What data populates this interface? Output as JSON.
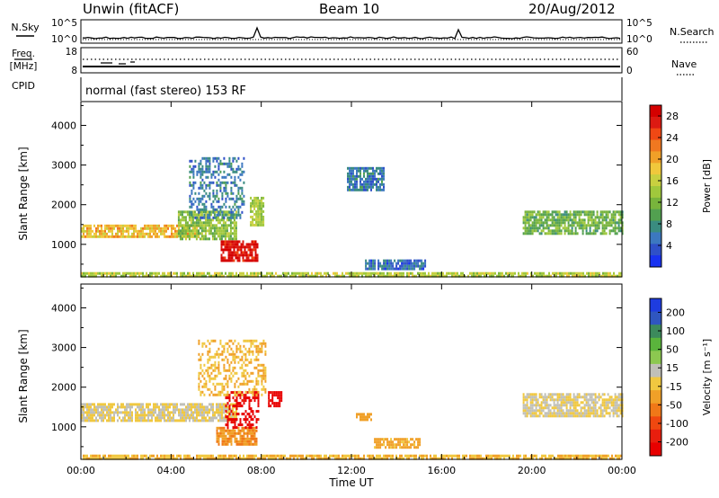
{
  "header": {
    "station": "Unwin (fitACF)",
    "beam": "Beam 10",
    "date": "20/Aug/2012"
  },
  "top_panels": {
    "nsky_label": "N.Sky",
    "nsearch_label": "N.Search",
    "noise_ticks": [
      "10^5",
      "10^0"
    ],
    "freq_label_1": "Freq.",
    "freq_label_2": "[MHz]",
    "freq_ticks": [
      "18",
      "8"
    ],
    "nave_ticks": [
      "60",
      "0"
    ],
    "nave_label": "Nave",
    "cpid_label": "CPID",
    "program": "normal (fast stereo) 153 RF"
  },
  "chart_data": [
    {
      "type": "heatmap",
      "name": "power-panel",
      "ylabel": "Slant Range [km]",
      "xlabel": "",
      "x_ticks": [
        "00:00",
        "04:00",
        "08:00",
        "12:00",
        "16:00",
        "20:00",
        "00:00"
      ],
      "x_range_hours": [
        0,
        24
      ],
      "y_ticks": [
        1000,
        2000,
        3000,
        4000
      ],
      "ylim": [
        180,
        4600
      ],
      "colorbar": {
        "label": "Power [dB]",
        "ticks": [
          4,
          8,
          12,
          16,
          20,
          24,
          28
        ],
        "range": [
          0,
          30
        ],
        "colors": [
          "#1832f0",
          "#2f50c8",
          "#3c78c0",
          "#3a8c80",
          "#52a050",
          "#78b43c",
          "#a0c83c",
          "#c8d040",
          "#f0c83c",
          "#f0a028",
          "#f07820",
          "#f04814",
          "#dc1a12",
          "#d40000"
        ]
      },
      "echo_regions": [
        {
          "t0": 0.0,
          "t1": 5.2,
          "r0": 1180,
          "r1": 1500,
          "value": 19
        },
        {
          "t0": 4.3,
          "t1": 6.9,
          "r0": 1150,
          "r1": 1850,
          "value": 13
        },
        {
          "t0": 6.2,
          "t1": 7.8,
          "r0": 600,
          "r1": 1100,
          "value": 28
        },
        {
          "t0": 4.8,
          "t1": 7.2,
          "r0": 1700,
          "r1": 3200,
          "value": 6
        },
        {
          "t0": 7.5,
          "t1": 8.1,
          "r0": 1500,
          "r1": 2200,
          "value": 14
        },
        {
          "t0": 19.6,
          "t1": 24.0,
          "r0": 1300,
          "r1": 1850,
          "value": 11
        },
        {
          "t0": 11.8,
          "t1": 13.4,
          "r0": 2350,
          "r1": 2950,
          "value": 6
        },
        {
          "t0": 12.6,
          "t1": 15.3,
          "r0": 350,
          "r1": 620,
          "value": 5
        },
        {
          "t0": 0.0,
          "t1": 24.0,
          "r0": 180,
          "r1": 300,
          "value": 15
        }
      ]
    },
    {
      "type": "heatmap",
      "name": "velocity-panel",
      "ylabel": "Slant Range [km]",
      "xlabel": "Time UT",
      "x_ticks": [
        "00:00",
        "04:00",
        "08:00",
        "12:00",
        "16:00",
        "20:00",
        "00:00"
      ],
      "x_range_hours": [
        0,
        24
      ],
      "y_ticks": [
        1000,
        2000,
        3000,
        4000
      ],
      "ylim": [
        180,
        4600
      ],
      "colorbar": {
        "label": "Velocity [m s⁻¹]",
        "ticks": [
          200,
          100,
          50,
          15,
          -15,
          -50,
          -100,
          -200
        ],
        "colors": [
          "#1e3ce0",
          "#2f56c0",
          "#3c8a5c",
          "#5ab43c",
          "#8cc850",
          "#c0c0b8",
          "#f0c840",
          "#f0a028",
          "#f07818",
          "#f04810",
          "#e81e0e",
          "#e80000"
        ]
      },
      "echo_regions": [
        {
          "t0": 0.0,
          "t1": 6.9,
          "r0": 1150,
          "r1": 1600,
          "value": 0
        },
        {
          "t0": 6.0,
          "t1": 7.8,
          "r0": 550,
          "r1": 1000,
          "value": -80
        },
        {
          "t0": 6.4,
          "t1": 7.9,
          "r0": 1000,
          "r1": 1900,
          "value": -220
        },
        {
          "t0": 8.3,
          "t1": 8.9,
          "r0": 1500,
          "r1": 1900,
          "value": -220
        },
        {
          "t0": 5.2,
          "t1": 8.2,
          "r0": 1800,
          "r1": 3200,
          "value": -40
        },
        {
          "t0": 12.2,
          "t1": 12.9,
          "r0": 1150,
          "r1": 1350,
          "value": -60
        },
        {
          "t0": 13.0,
          "t1": 15.0,
          "r0": 450,
          "r1": 720,
          "value": -50
        },
        {
          "t0": 19.6,
          "t1": 24.0,
          "r0": 1300,
          "r1": 1850,
          "value": 0
        },
        {
          "t0": 0.0,
          "t1": 24.0,
          "r0": 180,
          "r1": 300,
          "value": -40
        }
      ]
    }
  ]
}
